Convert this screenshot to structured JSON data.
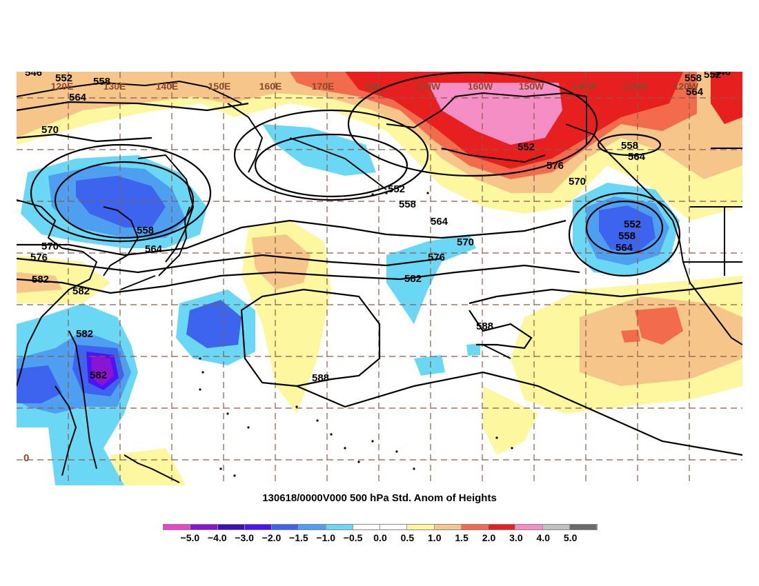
{
  "title": "130618/0000V000 500 hPa Std. Anom of Heights",
  "longitude_labels": [
    "120E",
    "130E",
    "140E",
    "150E",
    "160E",
    "170E",
    "180",
    "170W",
    "160W",
    "150W",
    "140W",
    "130W",
    "120W"
  ],
  "contour_labels": [
    "546",
    "552",
    "558",
    "564",
    "570",
    "576",
    "582",
    "588",
    "552",
    "558",
    "564",
    "570",
    "576",
    "582",
    "588",
    "552",
    "558",
    "564",
    "570",
    "576",
    "558",
    "564",
    "570",
    "552",
    "558",
    "564",
    "582",
    "582",
    "582",
    "558",
    "564",
    "552",
    "546"
  ],
  "corner_label": "0",
  "colorbar": {
    "colors": [
      "#e845c8",
      "#8b14d2",
      "#3b10b5",
      "#4a14f5",
      "#3c64ee",
      "#4f9ff1",
      "#6ad8f5",
      "#ffffff",
      "#ffffff",
      "#fdf7a0",
      "#f5c58a",
      "#f36b4d",
      "#e71f1f",
      "#f58ec4",
      "#c0c0c0",
      "#6a6a6a"
    ],
    "labels": [
      "−5.0",
      "−4.0",
      "−3.0",
      "−2.0",
      "−1.5",
      "−1.0",
      "−0.5",
      "0.0",
      "0.5",
      "1.0",
      "1.5",
      "2.0",
      "3.0",
      "4.0",
      "5.0"
    ]
  },
  "colors": {
    "grid": "#8a5a4a",
    "contour": "#000000",
    "coast": "#000000",
    "lonlabel": "#8a4a2a"
  }
}
